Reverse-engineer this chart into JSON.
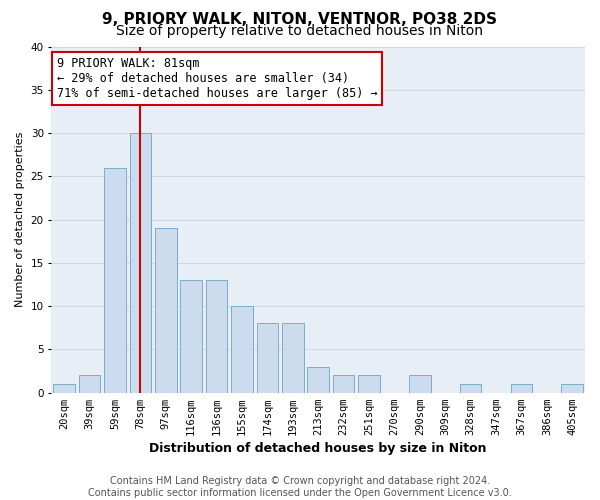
{
  "title": "9, PRIORY WALK, NITON, VENTNOR, PO38 2DS",
  "subtitle": "Size of property relative to detached houses in Niton",
  "xlabel": "Distribution of detached houses by size in Niton",
  "ylabel": "Number of detached properties",
  "categories": [
    "20sqm",
    "39sqm",
    "59sqm",
    "78sqm",
    "97sqm",
    "116sqm",
    "136sqm",
    "155sqm",
    "174sqm",
    "193sqm",
    "213sqm",
    "232sqm",
    "251sqm",
    "270sqm",
    "290sqm",
    "309sqm",
    "328sqm",
    "347sqm",
    "367sqm",
    "386sqm",
    "405sqm"
  ],
  "values": [
    1,
    2,
    26,
    30,
    19,
    13,
    13,
    10,
    8,
    8,
    3,
    2,
    2,
    0,
    2,
    0,
    1,
    0,
    1,
    0,
    1
  ],
  "bar_color": "#ccdcee",
  "bar_edge_color": "#7aaec8",
  "vline_index": 3,
  "vline_color": "#cc0000",
  "annotation_line1": "9 PRIORY WALK: 81sqm",
  "annotation_line2": "← 29% of detached houses are smaller (34)",
  "annotation_line3": "71% of semi-detached houses are larger (85) →",
  "annotation_box_facecolor": "#ffffff",
  "annotation_box_edgecolor": "#cc0000",
  "ylim": [
    0,
    40
  ],
  "yticks": [
    0,
    5,
    10,
    15,
    20,
    25,
    30,
    35,
    40
  ],
  "grid_color": "#d0d8e8",
  "plot_bg_color": "#e8eef6",
  "fig_bg_color": "#ffffff",
  "title_fontsize": 11,
  "subtitle_fontsize": 10,
  "xlabel_fontsize": 9,
  "ylabel_fontsize": 8,
  "tick_fontsize": 7.5,
  "annotation_fontsize": 8.5,
  "footer_fontsize": 7,
  "footer": "Contains HM Land Registry data © Crown copyright and database right 2024.\nContains public sector information licensed under the Open Government Licence v3.0."
}
